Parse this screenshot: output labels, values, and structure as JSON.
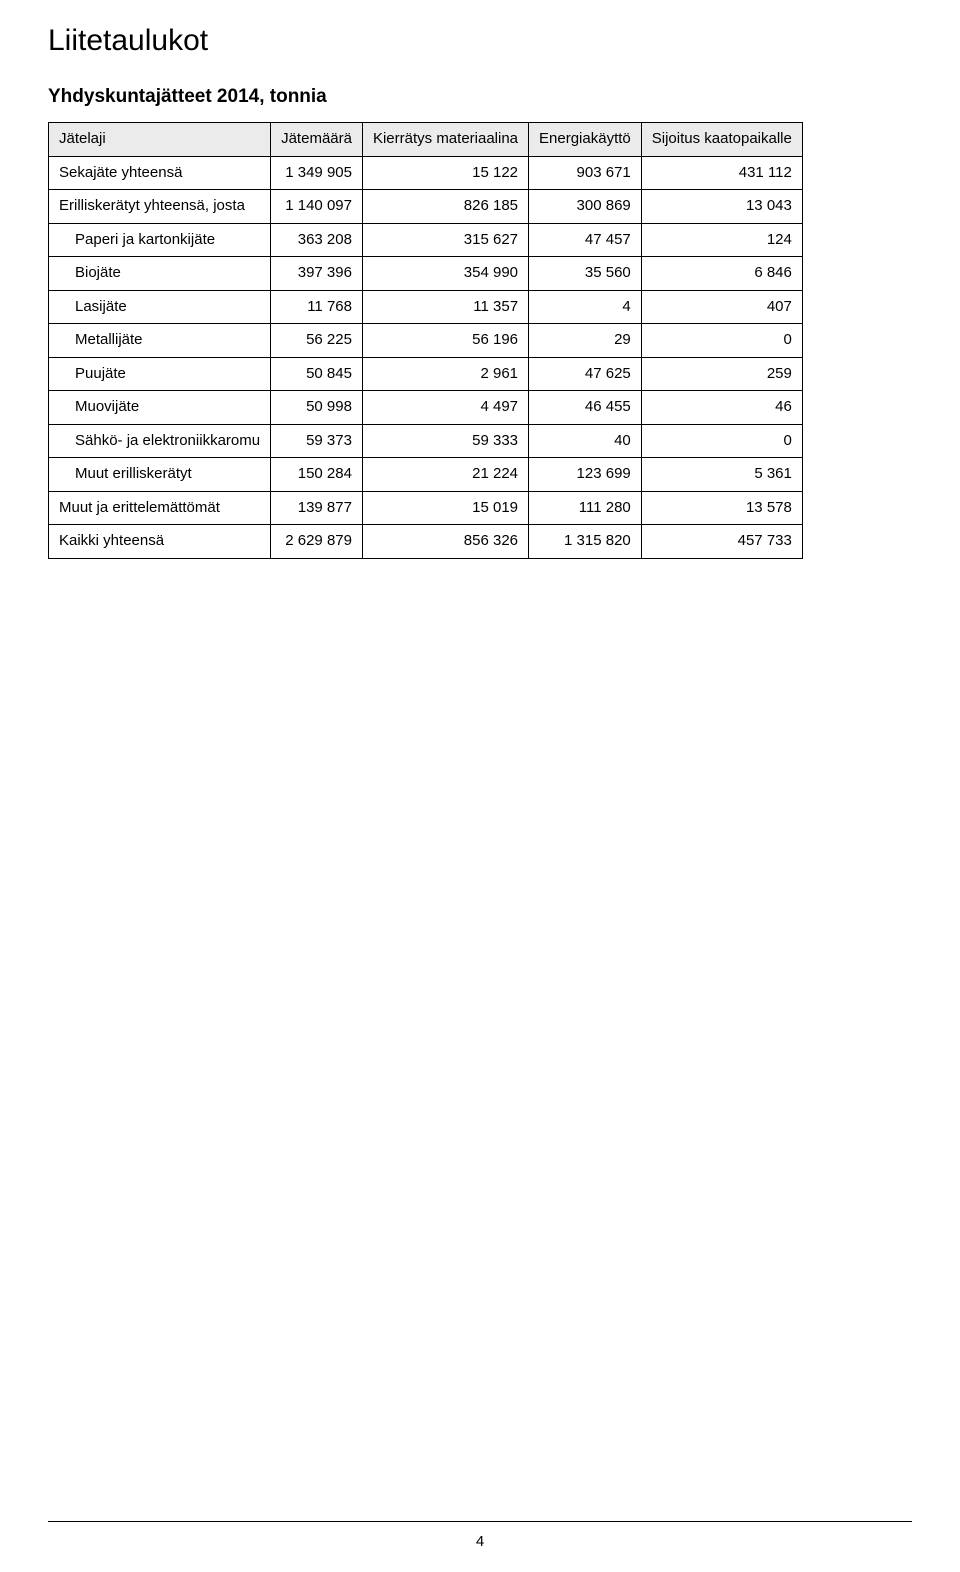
{
  "page": {
    "title": "Liitetaulukot",
    "subtitle": "Yhdyskuntajätteet 2014, tonnia",
    "page_number": "4"
  },
  "table": {
    "columns": [
      "Jätelaji",
      "Jätemäärä",
      "Kierrätys materiaalina",
      "Energiakäyttö",
      "Sijoitus kaatopaikalle"
    ],
    "rows": [
      {
        "indent": 0,
        "label": "Sekajäte yhteensä",
        "values": [
          "1 349 905",
          "15 122",
          "903 671",
          "431 112"
        ]
      },
      {
        "indent": 0,
        "label": "Erilliskerätyt yhteensä, josta",
        "values": [
          "1 140 097",
          "826 185",
          "300 869",
          "13 043"
        ]
      },
      {
        "indent": 1,
        "label": "Paperi ja kartonkijäte",
        "values": [
          "363 208",
          "315 627",
          "47 457",
          "124"
        ]
      },
      {
        "indent": 1,
        "label": "Biojäte",
        "values": [
          "397 396",
          "354 990",
          "35 560",
          "6 846"
        ]
      },
      {
        "indent": 1,
        "label": "Lasijäte",
        "values": [
          "11 768",
          "11 357",
          "4",
          "407"
        ]
      },
      {
        "indent": 1,
        "label": "Metallijäte",
        "values": [
          "56 225",
          "56 196",
          "29",
          "0"
        ]
      },
      {
        "indent": 1,
        "label": "Puujäte",
        "values": [
          "50 845",
          "2 961",
          "47 625",
          "259"
        ]
      },
      {
        "indent": 1,
        "label": "Muovijäte",
        "values": [
          "50 998",
          "4 497",
          "46 455",
          "46"
        ]
      },
      {
        "indent": 1,
        "label": "Sähkö- ja    elektroniikkaromu",
        "values": [
          "59 373",
          "59 333",
          "40",
          "0"
        ]
      },
      {
        "indent": 1,
        "label": "Muut erilliskerätyt",
        "values": [
          "150 284",
          "21 224",
          "123 699",
          "5 361"
        ]
      },
      {
        "indent": 0,
        "label": "Muut ja erittelemättömät",
        "values": [
          "139 877",
          "15 019",
          "111 280",
          "13 578"
        ]
      },
      {
        "indent": 0,
        "label": "Kaikki yhteensä",
        "values": [
          "2 629 879",
          "856 326",
          "1 315 820",
          "457 733"
        ]
      }
    ]
  }
}
